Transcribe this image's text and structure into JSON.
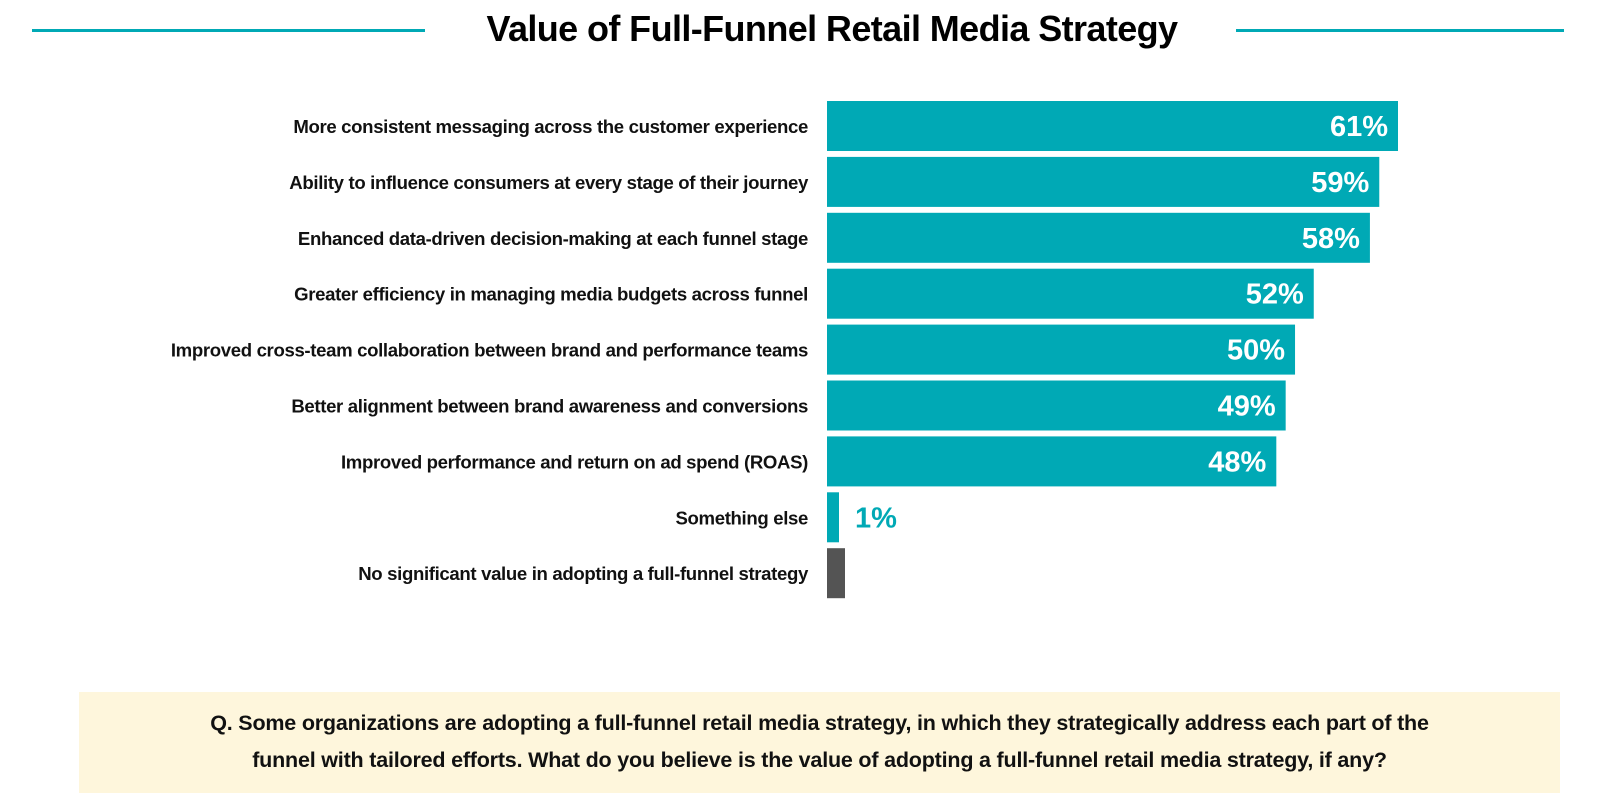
{
  "title": "Value of Full-Funnel Retail Media Strategy",
  "colors": {
    "accent": "#00A9B5",
    "neutral_bar": "#545454",
    "value_label_inside": "#ffffff",
    "question_bg": "#FEF6DC"
  },
  "chart_data": {
    "type": "bar",
    "orientation": "horizontal",
    "title": "Value of Full-Funnel Retail Media Strategy",
    "xlabel": "",
    "ylabel": "",
    "grid": false,
    "legend": "none",
    "unit": "%",
    "xlim": [
      0,
      61
    ],
    "categories": [
      "More consistent messaging across the customer experience",
      "Ability to influence consumers  at every stage of their  journey",
      "Enhanced data-driven decision-making at each funnel stage",
      "Greater efficiency in managing media budgets across funnel",
      "Improved cross-team collaboration between brand and performance teams",
      "Better alignment between brand awareness and conversions",
      "Improved performance and return on ad spend (ROAS)",
      "Something else",
      "No significant value in adopting a full-funnel strategy"
    ],
    "values": [
      61,
      59,
      58,
      52,
      50,
      49,
      48,
      1,
      null
    ],
    "value_labels": [
      "61%",
      "59%",
      "58%",
      "52%",
      "50%",
      "49%",
      "48%",
      "1%",
      ""
    ],
    "bar_colors": [
      "#00A9B5",
      "#00A9B5",
      "#00A9B5",
      "#00A9B5",
      "#00A9B5",
      "#00A9B5",
      "#00A9B5",
      "#00A9B5",
      "#545454"
    ]
  },
  "question": {
    "line1": "Q.  Some organizations are adopting a full-funnel retail media strategy, in which they strategically address each part of the",
    "line2": "funnel with tailored efforts. What do you believe is the value of adopting a full-funnel retail media strategy, if any?"
  }
}
